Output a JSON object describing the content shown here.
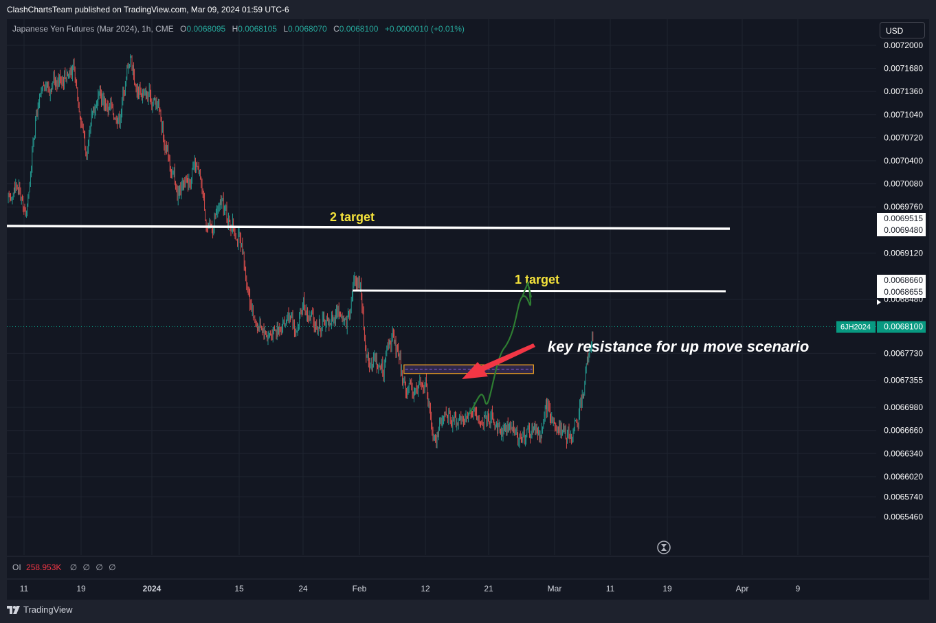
{
  "header": {
    "publish_line": "ClashChartsTeam published on TradingView.com, Mar 09, 2024 01:59 UTC-6"
  },
  "legend": {
    "symbol": "Japanese Yen Futures (Mar 2024), 1h, CME",
    "o_label": "O",
    "o_value": "0.0068095",
    "h_label": "H",
    "h_value": "0.0068105",
    "l_label": "L",
    "l_value": "0.0068070",
    "c_label": "C",
    "c_value": "0.0068100",
    "change": "+0.0000010 (+0.01%)"
  },
  "currency": "USD",
  "oi_legend": {
    "label": "OI",
    "value": "258.953K",
    "zeros": [
      "∅",
      "∅",
      "∅",
      "∅"
    ]
  },
  "footer": {
    "brand": "TradingView"
  },
  "icons": {
    "replay": "hourglass-icon",
    "logo": "tradingview-logo-icon"
  },
  "colors": {
    "up": "#26a69a",
    "down": "#ef5350",
    "bg": "#131722",
    "grid": "#1f2430",
    "annotation_yellow": "#f5e33b",
    "arrow_red": "#f23645",
    "path_green": "#2e7d32",
    "zone_border": "#f5a623",
    "zone_line": "#7e57c2",
    "last_price": "#089981"
  },
  "chart_data": {
    "type": "candlestick",
    "title": "Japanese Yen Futures (Mar 2024), 1h, CME",
    "xlabel": "",
    "ylabel": "",
    "ylim": [
      0.00653,
      0.0072275
    ],
    "y_ticks": [
      "0.0072000",
      "0.0071680",
      "0.0071360",
      "0.0071040",
      "0.0070720",
      "0.0070400",
      "0.0070080",
      "0.0069760",
      "0.0069120",
      "0.0068480",
      "0.0067730",
      "0.0067355",
      "0.0066980",
      "0.0066660",
      "0.0066340",
      "0.0066020",
      "0.0065740",
      "0.0065460"
    ],
    "x_ticks": [
      "11",
      "19",
      "2024",
      "15",
      "24",
      "Feb",
      "12",
      "21",
      "Mar",
      "11",
      "19",
      "Apr",
      "9"
    ],
    "x_ticks_bold": [
      "2024"
    ],
    "price_path": [
      {
        "d": "Dec 11",
        "p": 0.00698
      },
      {
        "d": "Dec 12",
        "p": 0.00701
      },
      {
        "d": "Dec 13",
        "p": 0.00696
      },
      {
        "d": "Dec 14",
        "p": 0.0071
      },
      {
        "d": "Dec 15",
        "p": 0.00714
      },
      {
        "d": "Dec 18",
        "p": 0.00717
      },
      {
        "d": "Dec 19",
        "p": 0.0071
      },
      {
        "d": "Dec 20",
        "p": 0.00704
      },
      {
        "d": "Dec 21",
        "p": 0.00711
      },
      {
        "d": "Dec 22",
        "p": 0.00713
      },
      {
        "d": "Dec 26",
        "p": 0.0071
      },
      {
        "d": "Dec 27",
        "p": 0.00715
      },
      {
        "d": "Dec 28",
        "p": 0.00719
      },
      {
        "d": "Dec 29",
        "p": 0.00714
      },
      {
        "d": "Jan 2",
        "p": 0.00712
      },
      {
        "d": "Jan 3",
        "p": 0.00706
      },
      {
        "d": "Jan 4",
        "p": 0.00703
      },
      {
        "d": "Jan 5",
        "p": 0.00699
      },
      {
        "d": "Jan 8",
        "p": 0.00703
      },
      {
        "d": "Jan 9",
        "p": 0.007
      },
      {
        "d": "Jan 10",
        "p": 0.00694
      },
      {
        "d": "Jan 11",
        "p": 0.00696
      },
      {
        "d": "Jan 12",
        "p": 0.00698
      },
      {
        "d": "Jan 15",
        "p": 0.00693
      },
      {
        "d": "Jan 16",
        "p": 0.00687
      },
      {
        "d": "Jan 17",
        "p": 0.00682
      },
      {
        "d": "Jan 18",
        "p": 0.00681
      },
      {
        "d": "Jan 19",
        "p": 0.0068
      },
      {
        "d": "Jan 22",
        "p": 0.00682
      },
      {
        "d": "Jan 23",
        "p": 0.0068
      },
      {
        "d": "Jan 24",
        "p": 0.00684
      },
      {
        "d": "Jan 25",
        "p": 0.00682
      },
      {
        "d": "Jan 26",
        "p": 0.00681
      },
      {
        "d": "Jan 29",
        "p": 0.00683
      },
      {
        "d": "Jan 30",
        "p": 0.00681
      },
      {
        "d": "Jan 31",
        "p": 0.00687
      },
      {
        "d": "Feb 1",
        "p": 0.00688
      },
      {
        "d": "Feb 2",
        "p": 0.00677
      },
      {
        "d": "Feb 5",
        "p": 0.00675
      },
      {
        "d": "Feb 6",
        "p": 0.0068
      },
      {
        "d": "Feb 7",
        "p": 0.00678
      },
      {
        "d": "Feb 8",
        "p": 0.00674
      },
      {
        "d": "Feb 9",
        "p": 0.00672
      },
      {
        "d": "Feb 12",
        "p": 0.00673
      },
      {
        "d": "Feb 13",
        "p": 0.00666
      },
      {
        "d": "Feb 14",
        "p": 0.00667
      },
      {
        "d": "Feb 15",
        "p": 0.00669
      },
      {
        "d": "Feb 16",
        "p": 0.00668
      },
      {
        "d": "Feb 19",
        "p": 0.00669
      },
      {
        "d": "Feb 20",
        "p": 0.00668
      },
      {
        "d": "Feb 21",
        "p": 0.00669
      },
      {
        "d": "Feb 22",
        "p": 0.00667
      },
      {
        "d": "Feb 23",
        "p": 0.00667
      },
      {
        "d": "Feb 26",
        "p": 0.00666
      },
      {
        "d": "Feb 27",
        "p": 0.00667
      },
      {
        "d": "Feb 28",
        "p": 0.00666
      },
      {
        "d": "Feb 29",
        "p": 0.0067
      },
      {
        "d": "Mar 1",
        "p": 0.00667
      },
      {
        "d": "Mar 4",
        "p": 0.00666
      },
      {
        "d": "Mar 5",
        "p": 0.00668
      },
      {
        "d": "Mar 6",
        "p": 0.00672
      },
      {
        "d": "Mar 7",
        "p": 0.00677
      },
      {
        "d": "Mar 8",
        "p": 0.00681
      }
    ],
    "horizontal_levels": [
      {
        "label": "2 target",
        "labels": [
          "0.0069515",
          "0.0069480"
        ]
      },
      {
        "label": "1 target",
        "labels": [
          "0.0068660",
          "0.0068655"
        ]
      }
    ],
    "resistance_zone": {
      "low": 0.006745,
      "high": 0.006757,
      "start": "Feb 9",
      "end": "Feb 29"
    },
    "annotations": [
      "2 target",
      "1 target",
      "key resistance for up move scenario"
    ],
    "last_price": {
      "symbol": "6JH2024",
      "value": "0.0068100"
    }
  }
}
